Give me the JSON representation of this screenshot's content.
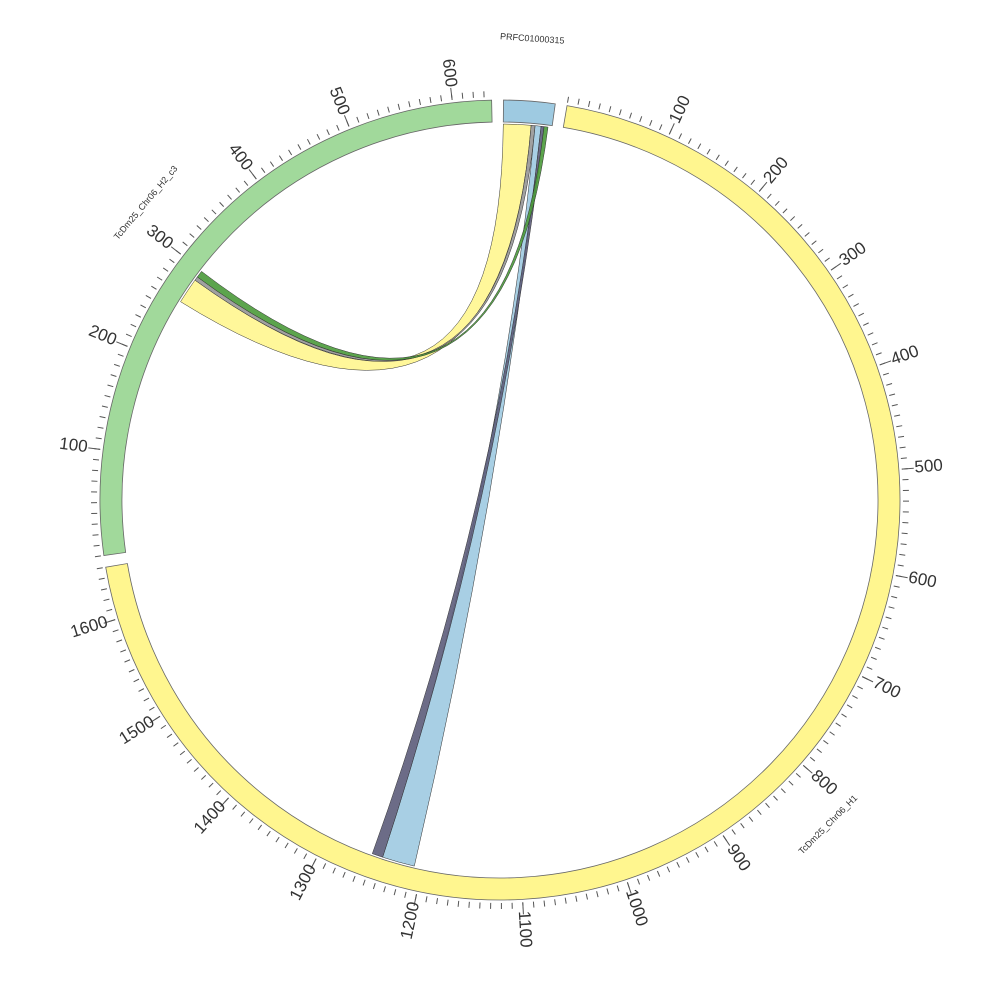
{
  "segments": [
    {
      "name": "PRFC01000315",
      "length": 49,
      "color": "#9ecae1",
      "show_ticks": false,
      "ticks": []
    },
    {
      "name": "TcDm25_Chr06_H1",
      "length": 1650,
      "color": "#fff68f",
      "show_ticks": true,
      "ticks": [
        100,
        200,
        300,
        400,
        500,
        600,
        700,
        800,
        900,
        1000,
        1100,
        1200,
        1300,
        1400,
        1500,
        1600
      ]
    },
    {
      "name": "TcDm25_Chr06_H2_c3",
      "length": 637,
      "color": "#a1d99b",
      "show_ticks": true,
      "ticks": [
        100,
        200,
        300,
        400,
        500,
        600
      ]
    }
  ],
  "minor_tick_step": 10,
  "links": [
    {
      "source": {
        "segment": 0,
        "start": 0,
        "end": 28
      },
      "target": {
        "segment": 2,
        "start": 262,
        "end": 288
      },
      "color": "#fff68f"
    },
    {
      "source": {
        "segment": 0,
        "start": 28,
        "end": 32
      },
      "target": {
        "segment": 2,
        "start": 288,
        "end": 292
      },
      "color": "#969696"
    },
    {
      "source": {
        "segment": 0,
        "start": 32,
        "end": 38
      },
      "target": {
        "segment": 1,
        "start": 1208,
        "end": 1241
      },
      "color": "#9ecae1"
    },
    {
      "source": {
        "segment": 0,
        "start": 38,
        "end": 41
      },
      "target": {
        "segment": 1,
        "start": 1241,
        "end": 1252
      },
      "color": "#5c5c7a"
    },
    {
      "source": {
        "segment": 0,
        "start": 41,
        "end": 45
      },
      "target": {
        "segment": 2,
        "start": 292,
        "end": 299
      },
      "color": "#4a9a3a"
    }
  ]
}
